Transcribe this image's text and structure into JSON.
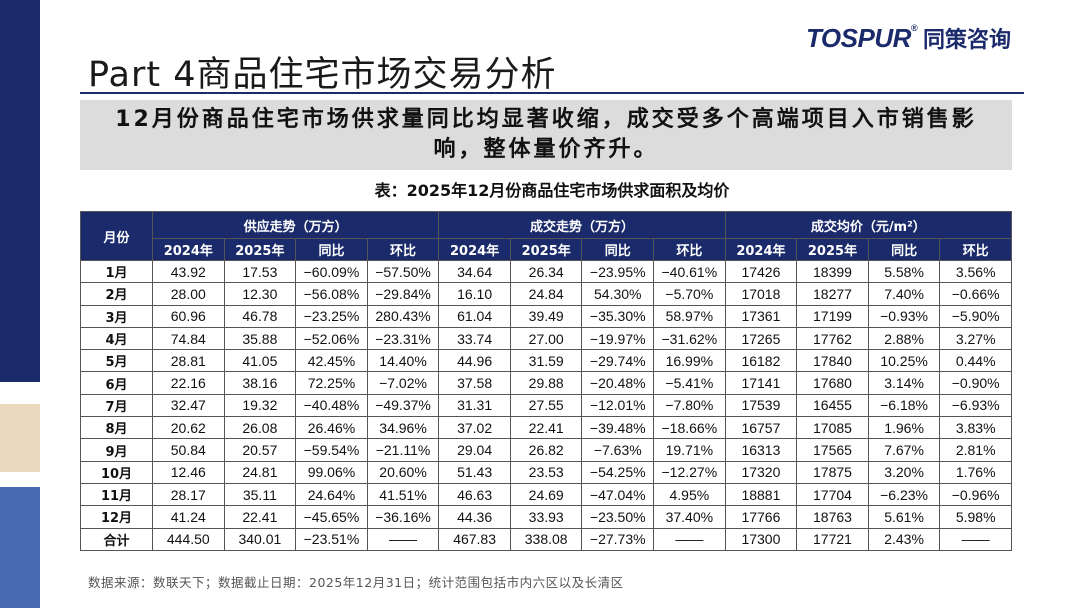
{
  "brand": {
    "en": "TOSPUR",
    "reg": "®",
    "cn": "同策咨询"
  },
  "page_title": "Part 4商品住宅市场交易分析",
  "subtitle": "12月份商品住宅市场供求量同比均显著收缩，成交受多个高端项目入市销售影响，整体量价齐升。",
  "table": {
    "caption": "表：2025年12月份商品住宅市场供求面积及均价",
    "month_header": "月份",
    "groups": [
      "供应走势（万方）",
      "成交走势（万方）",
      "成交均价（元/m²）"
    ],
    "subheaders": [
      "2024年",
      "2025年",
      "同比",
      "环比",
      "2024年",
      "2025年",
      "同比",
      "环比",
      "2024年",
      "2025年",
      "同比",
      "环比"
    ],
    "rows": [
      [
        "1月",
        "43.92",
        "17.53",
        "−60.09%",
        "−57.50%",
        "34.64",
        "26.34",
        "−23.95%",
        "−40.61%",
        "17426",
        "18399",
        "5.58%",
        "3.56%"
      ],
      [
        "2月",
        "28.00",
        "12.30",
        "−56.08%",
        "−29.84%",
        "16.10",
        "24.84",
        "54.30%",
        "−5.70%",
        "17018",
        "18277",
        "7.40%",
        "−0.66%"
      ],
      [
        "3月",
        "60.96",
        "46.78",
        "−23.25%",
        "280.43%",
        "61.04",
        "39.49",
        "−35.30%",
        "58.97%",
        "17361",
        "17199",
        "−0.93%",
        "−5.90%"
      ],
      [
        "4月",
        "74.84",
        "35.88",
        "−52.06%",
        "−23.31%",
        "33.74",
        "27.00",
        "−19.97%",
        "−31.62%",
        "17265",
        "17762",
        "2.88%",
        "3.27%"
      ],
      [
        "5月",
        "28.81",
        "41.05",
        "42.45%",
        "14.40%",
        "44.96",
        "31.59",
        "−29.74%",
        "16.99%",
        "16182",
        "17840",
        "10.25%",
        "0.44%"
      ],
      [
        "6月",
        "22.16",
        "38.16",
        "72.25%",
        "−7.02%",
        "37.58",
        "29.88",
        "−20.48%",
        "−5.41%",
        "17141",
        "17680",
        "3.14%",
        "−0.90%"
      ],
      [
        "7月",
        "32.47",
        "19.32",
        "−40.48%",
        "−49.37%",
        "31.31",
        "27.55",
        "−12.01%",
        "−7.80%",
        "17539",
        "16455",
        "−6.18%",
        "−6.93%"
      ],
      [
        "8月",
        "20.62",
        "26.08",
        "26.46%",
        "34.96%",
        "37.02",
        "22.41",
        "−39.48%",
        "−18.66%",
        "16757",
        "17085",
        "1.96%",
        "3.83%"
      ],
      [
        "9月",
        "50.84",
        "20.57",
        "−59.54%",
        "−21.11%",
        "29.04",
        "26.82",
        "−7.63%",
        "19.71%",
        "16313",
        "17565",
        "7.67%",
        "2.81%"
      ],
      [
        "10月",
        "12.46",
        "24.81",
        "99.06%",
        "20.60%",
        "51.43",
        "23.53",
        "−54.25%",
        "−12.27%",
        "17320",
        "17875",
        "3.20%",
        "1.76%"
      ],
      [
        "11月",
        "28.17",
        "35.11",
        "24.64%",
        "41.51%",
        "46.63",
        "24.69",
        "−47.04%",
        "4.95%",
        "18881",
        "17704",
        "−6.23%",
        "−0.96%"
      ],
      [
        "12月",
        "41.24",
        "22.41",
        "−45.65%",
        "−36.16%",
        "44.36",
        "33.93",
        "−23.50%",
        "37.40%",
        "17766",
        "18763",
        "5.61%",
        "5.98%"
      ],
      [
        "合计",
        "444.50",
        "340.01",
        "−23.51%",
        "——",
        "467.83",
        "338.08",
        "−27.73%",
        "——",
        "17300",
        "17721",
        "2.43%",
        "——"
      ]
    ]
  },
  "source_note": "数据来源：数联天下；数据截止日期：2025年12月31日；统计范围包括市内六区以及长清区",
  "colors": {
    "navy": "#1b2a6b",
    "tan": "#ead8bf",
    "blue": "#4a69b3",
    "subtitle_bg": "#dcdcdc"
  }
}
